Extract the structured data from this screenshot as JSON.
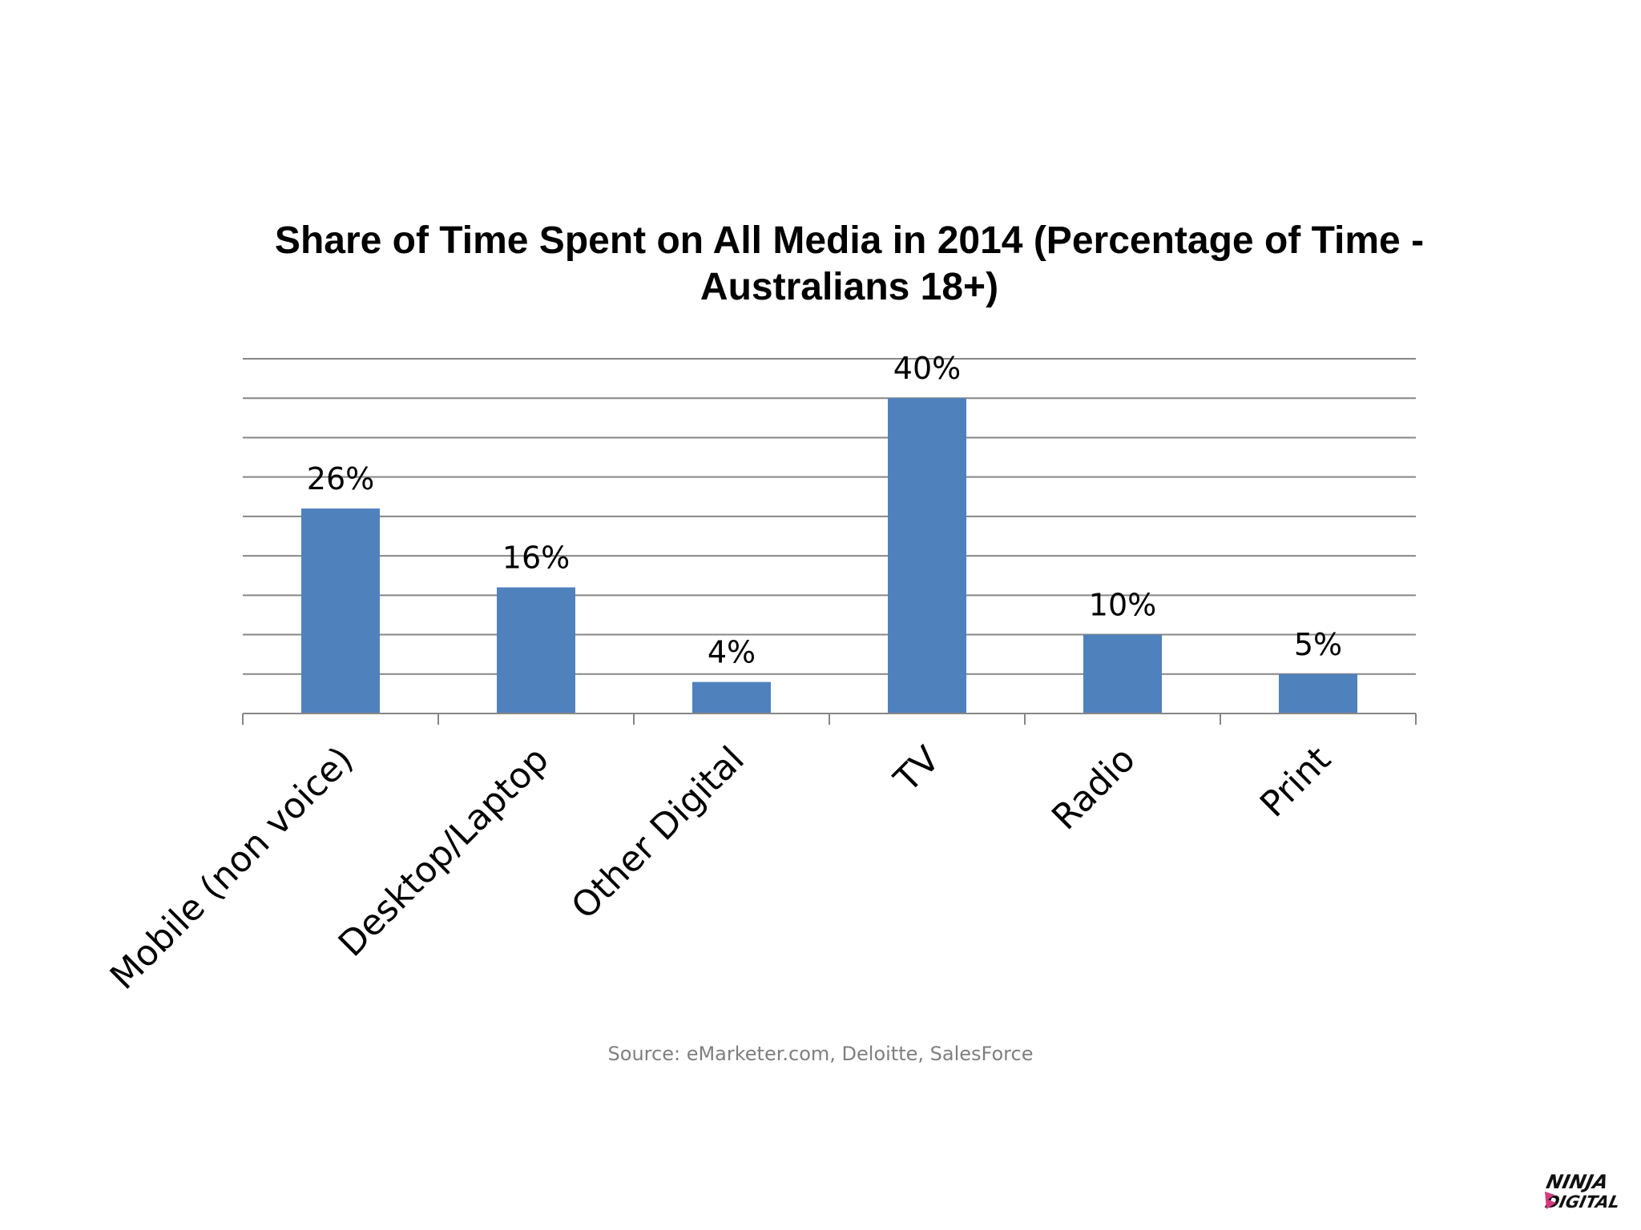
{
  "chart_data": {
    "type": "bar",
    "title": "Share of Time Spent on All Media in 2014 (Percentage of Time - Australians 18+)",
    "categories": [
      "Mobile (non voice)",
      "Desktop/Laptop",
      "Other Digital",
      "TV",
      "Radio",
      "Print"
    ],
    "values": [
      26,
      16,
      4,
      40,
      10,
      5
    ],
    "data_labels": [
      "26%",
      "16%",
      "4%",
      "40%",
      "10%",
      "5%"
    ],
    "ylim": [
      0,
      45
    ],
    "grid": true,
    "bar_color": "#4f81bd",
    "gridline_color": "#868686"
  },
  "source": "Source: eMarketer.com, Deloitte, SalesForce",
  "logo": {
    "line1": "NINJA",
    "line2": "DIGITAL",
    "accent_color": "#d63a7e"
  }
}
